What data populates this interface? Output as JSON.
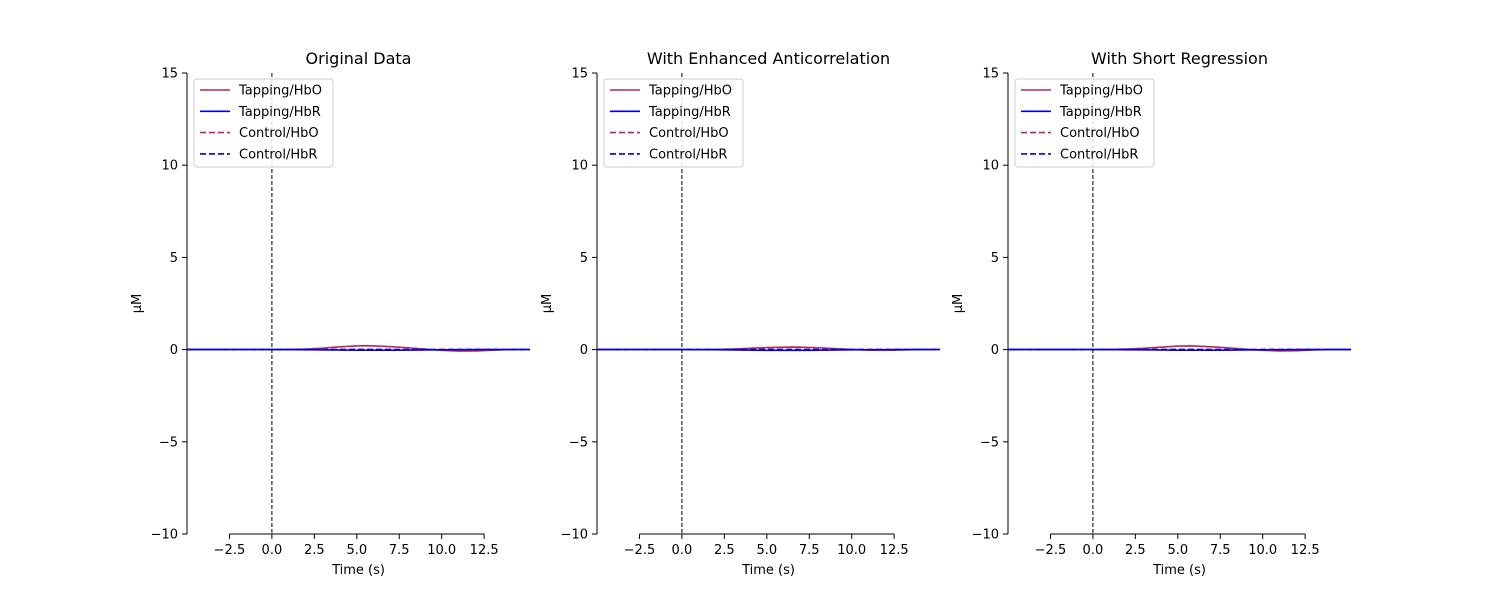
{
  "chart_data": [
    {
      "type": "line",
      "title": "Original Data",
      "xlabel": "Time (s)",
      "ylabel": "µM",
      "xlim": [
        -5,
        15.2
      ],
      "ylim": [
        -10,
        15
      ],
      "xticks": [
        -2.5,
        0.0,
        2.5,
        5.0,
        7.5,
        10.0,
        12.5
      ],
      "xtick_labels": [
        "−2.5",
        "0.0",
        "2.5",
        "5.0",
        "7.5",
        "10.0",
        "12.5"
      ],
      "yticks": [
        -10,
        -5,
        0,
        5,
        10,
        15
      ],
      "ytick_labels": [
        "−10",
        "−5",
        "0",
        "5",
        "10",
        "15"
      ],
      "grid": false,
      "legend_position": "upper-left",
      "vline_x": 0,
      "series": [
        {
          "name": "Tapping/HbO",
          "color": "#b2275d",
          "dash": "solid",
          "x": [
            -5,
            -2.5,
            0,
            1,
            2,
            3,
            4,
            5,
            5.5,
            6,
            7,
            8,
            9,
            10,
            11,
            12,
            13,
            14,
            15.2
          ],
          "y": [
            0,
            0,
            0,
            0.01,
            0.03,
            0.08,
            0.15,
            0.2,
            0.21,
            0.2,
            0.16,
            0.1,
            0.03,
            -0.04,
            -0.08,
            -0.07,
            -0.03,
            0,
            0
          ]
        },
        {
          "name": "Tapping/HbR",
          "color": "#0000dd",
          "dash": "solid",
          "x": [
            -5,
            0,
            2.5,
            5,
            7.5,
            10,
            12.5,
            15.2
          ],
          "y": [
            0,
            0,
            -0.01,
            -0.03,
            -0.03,
            -0.01,
            0,
            0
          ]
        },
        {
          "name": "Control/HbO",
          "color": "#b2275d",
          "dash": "dashed",
          "x": [
            -5,
            0,
            5,
            10,
            15.2
          ],
          "y": [
            0,
            0,
            0.01,
            0,
            0
          ]
        },
        {
          "name": "Control/HbR",
          "color": "#0000dd",
          "dash": "dashed",
          "x": [
            -5,
            0,
            5,
            10,
            15.2
          ],
          "y": [
            0,
            0,
            0,
            0,
            0
          ]
        }
      ]
    },
    {
      "type": "line",
      "title": "With Enhanced Anticorrelation",
      "xlabel": "Time (s)",
      "ylabel": "µM",
      "xlim": [
        -5,
        15.2
      ],
      "ylim": [
        -10,
        15
      ],
      "xticks": [
        -2.5,
        0.0,
        2.5,
        5.0,
        7.5,
        10.0,
        12.5
      ],
      "xtick_labels": [
        "−2.5",
        "0.0",
        "2.5",
        "5.0",
        "7.5",
        "10.0",
        "12.5"
      ],
      "yticks": [
        -10,
        -5,
        0,
        5,
        10,
        15
      ],
      "ytick_labels": [
        "−10",
        "−5",
        "0",
        "5",
        "10",
        "15"
      ],
      "grid": false,
      "legend_position": "upper-left",
      "vline_x": 0,
      "series": [
        {
          "name": "Tapping/HbO",
          "color": "#b2275d",
          "dash": "solid",
          "x": [
            -5,
            -2.5,
            0,
            1,
            2,
            3,
            4,
            5,
            6,
            6.5,
            7,
            8,
            9,
            10,
            11,
            12,
            13,
            14,
            15.2
          ],
          "y": [
            0,
            0,
            0,
            0,
            0.01,
            0.03,
            0.07,
            0.11,
            0.13,
            0.14,
            0.13,
            0.1,
            0.06,
            0.01,
            -0.03,
            -0.04,
            -0.02,
            0,
            0
          ]
        },
        {
          "name": "Tapping/HbR",
          "color": "#0000dd",
          "dash": "solid",
          "x": [
            -5,
            0,
            2.5,
            5,
            7.5,
            10,
            12.5,
            15.2
          ],
          "y": [
            0,
            0,
            -0.01,
            -0.04,
            -0.04,
            -0.01,
            0,
            0
          ]
        },
        {
          "name": "Control/HbO",
          "color": "#b2275d",
          "dash": "dashed",
          "x": [
            -5,
            0,
            5,
            10,
            15.2
          ],
          "y": [
            0,
            0,
            0.01,
            0,
            0
          ]
        },
        {
          "name": "Control/HbR",
          "color": "#0000dd",
          "dash": "dashed",
          "x": [
            -5,
            0,
            5,
            10,
            15.2
          ],
          "y": [
            0,
            0,
            0,
            0,
            0
          ]
        }
      ]
    },
    {
      "type": "line",
      "title": "With Short Regression",
      "xlabel": "Time (s)",
      "ylabel": "µM",
      "xlim": [
        -5,
        15.2
      ],
      "ylim": [
        -10,
        15
      ],
      "xticks": [
        -2.5,
        0.0,
        2.5,
        5.0,
        7.5,
        10.0,
        12.5
      ],
      "xtick_labels": [
        "−2.5",
        "0.0",
        "2.5",
        "5.0",
        "7.5",
        "10.0",
        "12.5"
      ],
      "yticks": [
        -10,
        -5,
        0,
        5,
        10,
        15
      ],
      "ytick_labels": [
        "−10",
        "−5",
        "0",
        "5",
        "10",
        "15"
      ],
      "grid": false,
      "legend_position": "upper-left",
      "vline_x": 0,
      "series": [
        {
          "name": "Tapping/HbO",
          "color": "#b2275d",
          "dash": "solid",
          "x": [
            -5,
            -2.5,
            0,
            1,
            2,
            3,
            4,
            5,
            5.7,
            6,
            7,
            8,
            9,
            10,
            11,
            12,
            13,
            14,
            15.2
          ],
          "y": [
            0,
            0,
            0,
            0.01,
            0.03,
            0.07,
            0.13,
            0.19,
            0.2,
            0.19,
            0.15,
            0.09,
            0.02,
            -0.04,
            -0.07,
            -0.06,
            -0.02,
            0,
            0
          ]
        },
        {
          "name": "Tapping/HbR",
          "color": "#0000dd",
          "dash": "solid",
          "x": [
            -5,
            0,
            2.5,
            5,
            7.5,
            10,
            12.5,
            15.2
          ],
          "y": [
            0,
            0,
            -0.01,
            -0.03,
            -0.03,
            -0.01,
            0,
            0
          ]
        },
        {
          "name": "Control/HbO",
          "color": "#b2275d",
          "dash": "dashed",
          "x": [
            -5,
            0,
            5,
            10,
            15.2
          ],
          "y": [
            0,
            0,
            0.01,
            0,
            0
          ]
        },
        {
          "name": "Control/HbR",
          "color": "#0000dd",
          "dash": "dashed",
          "x": [
            -5,
            0,
            5,
            10,
            15.2
          ],
          "y": [
            0,
            0,
            0,
            0,
            0
          ]
        }
      ]
    }
  ]
}
